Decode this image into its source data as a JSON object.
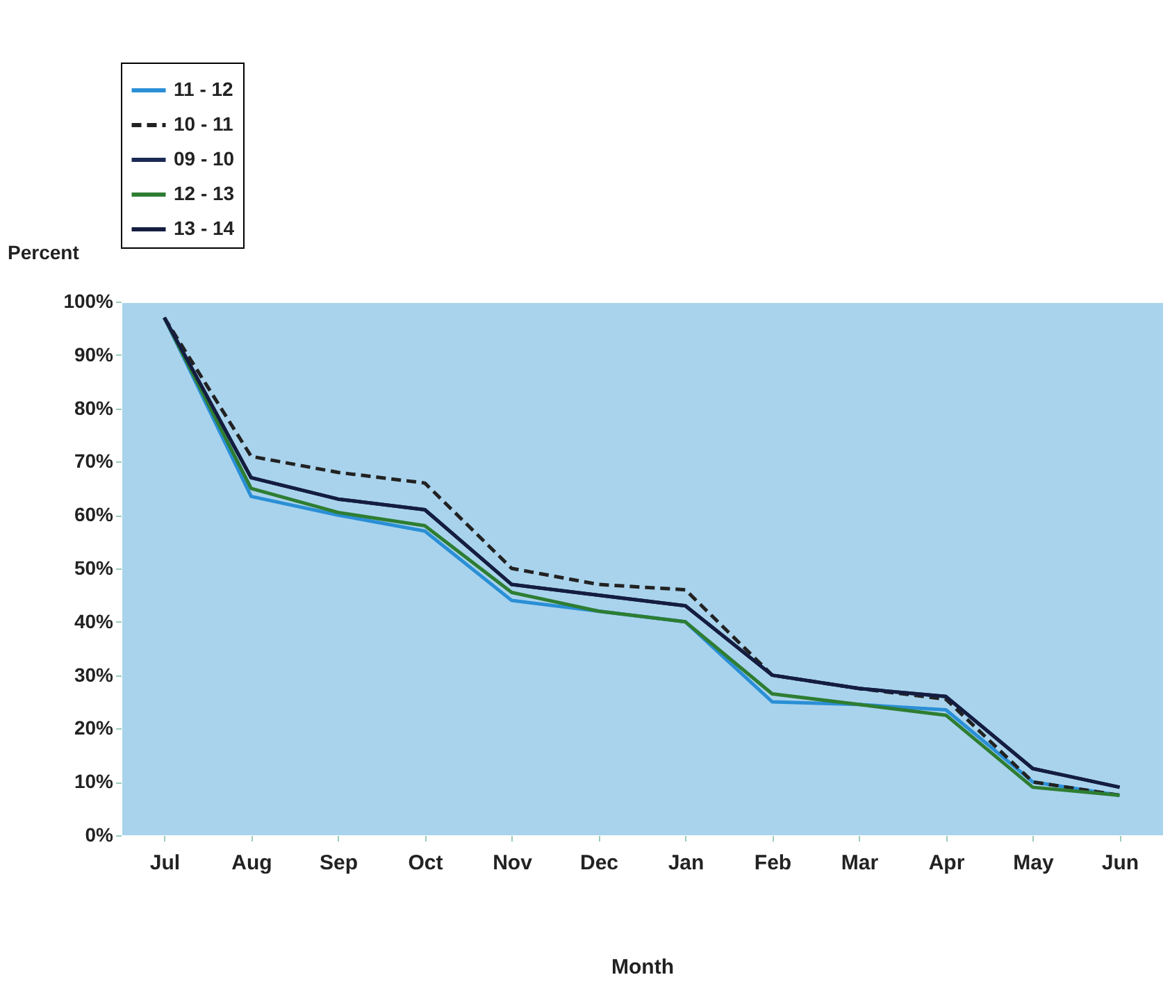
{
  "chart_data": {
    "type": "line",
    "xlabel": "Month",
    "ylabel": "Percent",
    "categories": [
      "Jul",
      "Aug",
      "Sep",
      "Oct",
      "Nov",
      "Dec",
      "Jan",
      "Feb",
      "Mar",
      "Apr",
      "May",
      "Jun"
    ],
    "ylim": [
      0,
      100
    ],
    "yticks": [
      {
        "value": 0,
        "label": "0%"
      },
      {
        "value": 10,
        "label": "10%"
      },
      {
        "value": 20,
        "label": "20%"
      },
      {
        "value": 30,
        "label": "30%"
      },
      {
        "value": 40,
        "label": "40%"
      },
      {
        "value": 50,
        "label": "50%"
      },
      {
        "value": 60,
        "label": "60%"
      },
      {
        "value": 70,
        "label": "70%"
      },
      {
        "value": 80,
        "label": "80%"
      },
      {
        "value": 90,
        "label": "90%"
      },
      {
        "value": 100,
        "label": "100%"
      }
    ],
    "grid": false,
    "legend": "top left",
    "marker": "none",
    "series": [
      {
        "name": "11 - 12",
        "color": "#2a8fd6",
        "line_style": "solid",
        "values": [
          97,
          63.5,
          60,
          57,
          44,
          42,
          40,
          25,
          24.5,
          23.5,
          10,
          7.5
        ]
      },
      {
        "name": "10 - 11",
        "color": "#222222",
        "line_style": "dashed",
        "values": [
          97,
          71,
          68,
          66,
          50,
          47,
          46,
          30,
          27.5,
          25.5,
          10,
          7.5
        ]
      },
      {
        "name": "09 - 10",
        "color": "#1a2a55",
        "line_style": "solid",
        "values": [
          97,
          67,
          63,
          61,
          47,
          45,
          43,
          30,
          27.5,
          26,
          12.5,
          9
        ]
      },
      {
        "name": "12 - 13",
        "color": "#2e7d32",
        "line_style": "solid",
        "values": [
          97,
          65,
          60.5,
          58,
          45.5,
          42,
          40,
          26.5,
          24.5,
          22.5,
          9,
          7.5
        ]
      },
      {
        "name": "13 - 14",
        "color": "#141d40",
        "line_style": "solid",
        "values": [
          97,
          67,
          63,
          61,
          47,
          45,
          43,
          30,
          27.5,
          26,
          12.5,
          9
        ]
      }
    ]
  }
}
